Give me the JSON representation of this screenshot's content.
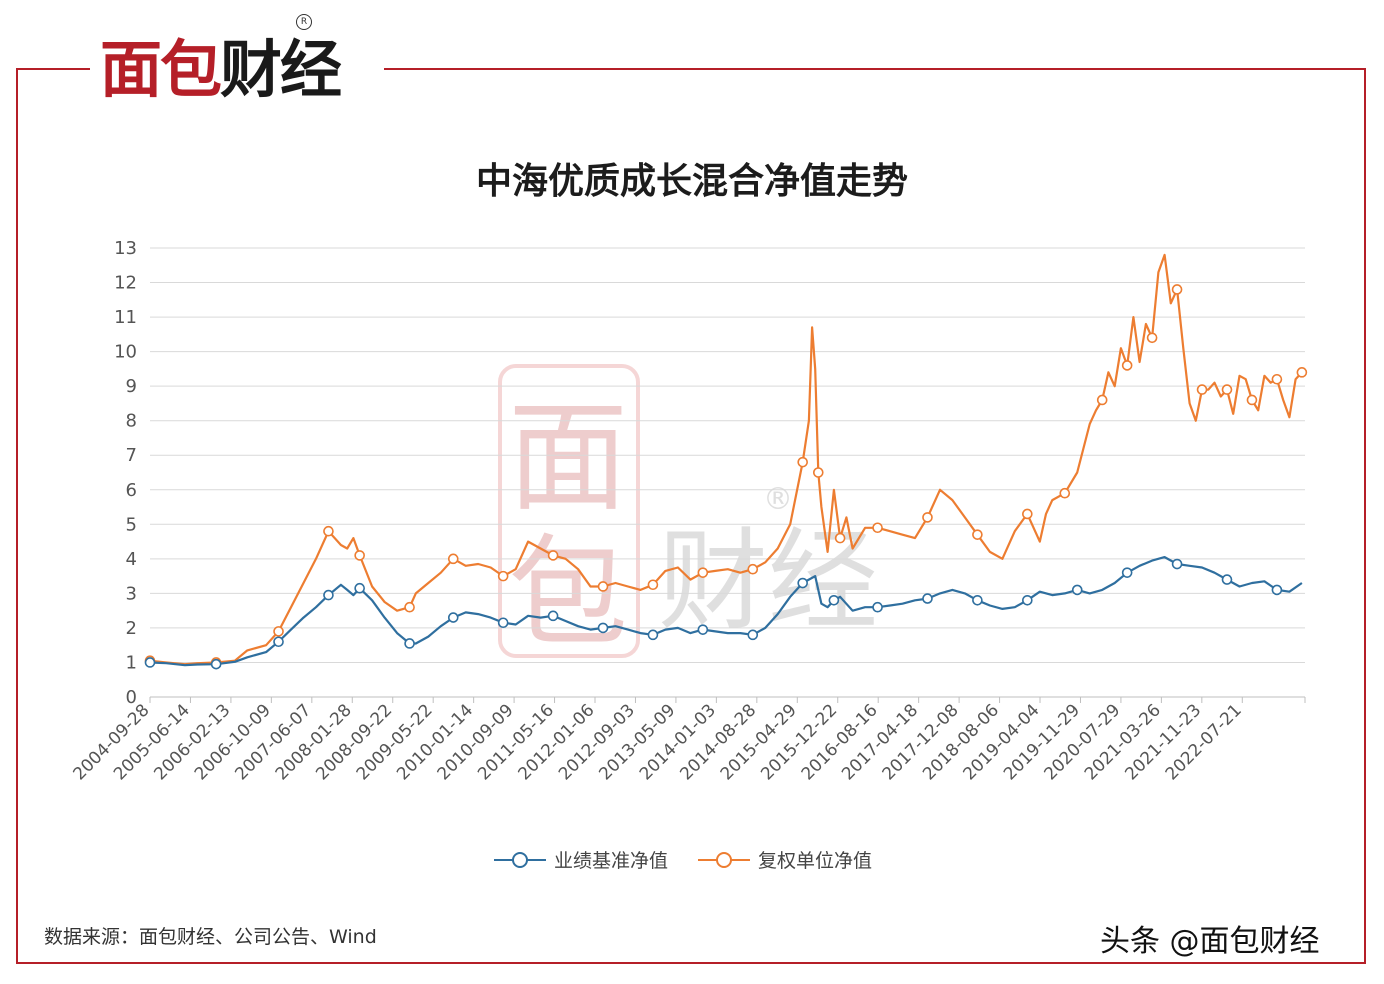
{
  "brand": {
    "text_red": "面包",
    "text_dark": "财经",
    "reg": "R"
  },
  "title": "中海优质成长混合净值走势",
  "source": "数据来源：面包财经、公司公告、Wind",
  "credit": "头条 @面包财经",
  "watermark": {
    "text": "面包财经",
    "reg": "®"
  },
  "colors": {
    "benchmark": "#2f6f9f",
    "adjusted": "#ed7d31",
    "grid": "#d9d9d9",
    "axis": "#bfbfbf",
    "brand_red": "#b51f28"
  },
  "chart_data": {
    "type": "line",
    "title": "中海优质成长混合净值走势",
    "ylim": [
      0,
      13
    ],
    "y_ticks": [
      "0",
      "1",
      "2",
      "3",
      "4",
      "5",
      "6",
      "7",
      "8",
      "9",
      "10",
      "11",
      "12",
      "13"
    ],
    "x_ticks": [
      "2004-09-28",
      "2005-06-14",
      "2006-02-13",
      "2006-10-09",
      "2007-06-07",
      "2008-01-28",
      "2008-09-22",
      "2009-05-22",
      "2010-01-14",
      "2010-09-09",
      "2011-05-16",
      "2012-01-06",
      "2012-09-03",
      "2013-05-09",
      "2014-01-03",
      "2014-08-28",
      "2015-04-29",
      "2015-12-22",
      "2016-08-16",
      "2017-04-18",
      "2017-12-08",
      "2018-08-06",
      "2019-04-04",
      "2019-11-29",
      "2020-07-29",
      "2021-03-26",
      "2021-11-23",
      "2022-07-21"
    ],
    "grid": "horizontal",
    "legend_position": "bottom",
    "series": [
      {
        "name": "业绩基准净值",
        "x": [
          2004.74,
          2005.0,
          2005.3,
          2005.5,
          2005.8,
          2006.1,
          2006.3,
          2006.6,
          2006.8,
          2007.0,
          2007.2,
          2007.4,
          2007.6,
          2007.8,
          2007.9,
          2008.0,
          2008.1,
          2008.3,
          2008.5,
          2008.7,
          2008.9,
          2009.0,
          2009.2,
          2009.4,
          2009.6,
          2009.8,
          2010.0,
          2010.2,
          2010.4,
          2010.6,
          2010.8,
          2011.0,
          2011.2,
          2011.4,
          2011.6,
          2011.8,
          2012.0,
          2012.2,
          2012.4,
          2012.6,
          2012.8,
          2013.0,
          2013.2,
          2013.4,
          2013.6,
          2013.8,
          2014.0,
          2014.2,
          2014.4,
          2014.6,
          2014.8,
          2015.0,
          2015.2,
          2015.4,
          2015.5,
          2015.6,
          2015.7,
          2015.8,
          2016.0,
          2016.2,
          2016.4,
          2016.6,
          2016.8,
          2017.0,
          2017.2,
          2017.4,
          2017.6,
          2017.8,
          2018.0,
          2018.2,
          2018.4,
          2018.6,
          2018.8,
          2019.0,
          2019.2,
          2019.4,
          2019.6,
          2019.8,
          2020.0,
          2020.2,
          2020.4,
          2020.6,
          2020.8,
          2021.0,
          2021.2,
          2021.4,
          2021.6,
          2021.8,
          2022.0,
          2022.2,
          2022.4,
          2022.6,
          2022.8,
          2023.0,
          2023.2
        ],
        "values": [
          1.0,
          0.98,
          0.92,
          0.94,
          0.95,
          1.02,
          1.15,
          1.3,
          1.6,
          1.95,
          2.3,
          2.6,
          2.95,
          3.25,
          3.1,
          2.95,
          3.15,
          2.8,
          2.3,
          1.85,
          1.55,
          1.55,
          1.75,
          2.05,
          2.3,
          2.45,
          2.4,
          2.3,
          2.15,
          2.1,
          2.35,
          2.3,
          2.35,
          2.2,
          2.05,
          1.95,
          2.0,
          2.05,
          1.95,
          1.85,
          1.8,
          1.95,
          2.0,
          1.85,
          1.95,
          1.9,
          1.85,
          1.85,
          1.8,
          2.0,
          2.4,
          2.9,
          3.3,
          3.5,
          2.7,
          2.6,
          2.8,
          2.9,
          2.5,
          2.6,
          2.6,
          2.65,
          2.7,
          2.8,
          2.85,
          3.0,
          3.1,
          3.0,
          2.8,
          2.65,
          2.55,
          2.6,
          2.8,
          3.05,
          2.95,
          3.0,
          3.1,
          3.0,
          3.1,
          3.3,
          3.6,
          3.8,
          3.95,
          4.05,
          3.85,
          3.8,
          3.75,
          3.6,
          3.4,
          3.2,
          3.3,
          3.35,
          3.1,
          3.05,
          3.3
        ]
      },
      {
        "name": "复权单位净值",
        "x": [
          2004.74,
          2005.0,
          2005.3,
          2005.5,
          2005.8,
          2006.1,
          2006.3,
          2006.6,
          2006.8,
          2007.0,
          2007.2,
          2007.4,
          2007.6,
          2007.8,
          2007.9,
          2008.0,
          2008.1,
          2008.3,
          2008.5,
          2008.7,
          2008.9,
          2009.0,
          2009.2,
          2009.4,
          2009.6,
          2009.8,
          2010.0,
          2010.2,
          2010.4,
          2010.6,
          2010.8,
          2011.0,
          2011.2,
          2011.4,
          2011.6,
          2011.8,
          2012.0,
          2012.2,
          2012.4,
          2012.6,
          2012.8,
          2013.0,
          2013.2,
          2013.4,
          2013.6,
          2013.8,
          2014.0,
          2014.2,
          2014.4,
          2014.6,
          2014.8,
          2015.0,
          2015.2,
          2015.3,
          2015.35,
          2015.4,
          2015.45,
          2015.5,
          2015.6,
          2015.7,
          2015.8,
          2015.9,
          2016.0,
          2016.2,
          2016.4,
          2016.6,
          2016.8,
          2017.0,
          2017.2,
          2017.4,
          2017.6,
          2017.8,
          2018.0,
          2018.2,
          2018.4,
          2018.6,
          2018.8,
          2019.0,
          2019.1,
          2019.2,
          2019.4,
          2019.6,
          2019.8,
          2019.9,
          2020.0,
          2020.1,
          2020.2,
          2020.3,
          2020.4,
          2020.5,
          2020.6,
          2020.7,
          2020.8,
          2020.9,
          2021.0,
          2021.1,
          2021.2,
          2021.3,
          2021.4,
          2021.5,
          2021.6,
          2021.7,
          2021.8,
          2021.9,
          2022.0,
          2022.1,
          2022.2,
          2022.3,
          2022.4,
          2022.5,
          2022.6,
          2022.7,
          2022.8,
          2022.9,
          2023.0,
          2023.1,
          2023.2
        ],
        "values": [
          1.05,
          1.0,
          0.95,
          0.98,
          1.0,
          1.05,
          1.35,
          1.5,
          1.9,
          2.6,
          3.3,
          4.0,
          4.8,
          4.4,
          4.3,
          4.6,
          4.1,
          3.2,
          2.75,
          2.5,
          2.6,
          3.0,
          3.3,
          3.6,
          4.0,
          3.8,
          3.85,
          3.75,
          3.5,
          3.7,
          4.5,
          4.3,
          4.1,
          4.0,
          3.7,
          3.2,
          3.2,
          3.3,
          3.2,
          3.1,
          3.25,
          3.65,
          3.75,
          3.4,
          3.6,
          3.65,
          3.7,
          3.6,
          3.7,
          3.9,
          4.3,
          5.0,
          6.8,
          8.0,
          10.7,
          9.5,
          6.5,
          5.5,
          4.2,
          6.0,
          4.6,
          5.2,
          4.3,
          4.9,
          4.9,
          4.8,
          4.7,
          4.6,
          5.2,
          6.0,
          5.7,
          5.2,
          4.7,
          4.2,
          4.0,
          4.8,
          5.3,
          4.5,
          5.3,
          5.7,
          5.9,
          6.5,
          7.9,
          8.3,
          8.6,
          9.4,
          9.0,
          10.1,
          9.6,
          11.0,
          9.7,
          10.8,
          10.4,
          12.3,
          12.8,
          11.4,
          11.8,
          10.1,
          8.5,
          8.0,
          8.9,
          8.9,
          9.1,
          8.7,
          8.9,
          8.2,
          9.3,
          9.2,
          8.6,
          8.3,
          9.3,
          9.1,
          9.2,
          8.6,
          8.1,
          9.2,
          9.4
        ]
      }
    ]
  }
}
